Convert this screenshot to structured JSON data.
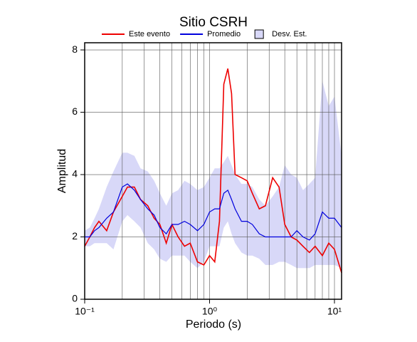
{
  "chart_data": {
    "type": "line",
    "title": "Sitio CSRH",
    "xlabel": "Periodo (s)",
    "ylabel": "Amplitud",
    "x": [
      0.1,
      0.11,
      0.12,
      0.13,
      0.15,
      0.17,
      0.2,
      0.22,
      0.25,
      0.28,
      0.32,
      0.36,
      0.4,
      0.45,
      0.5,
      0.56,
      0.63,
      0.7,
      0.8,
      0.9,
      1.0,
      1.1,
      1.2,
      1.3,
      1.4,
      1.5,
      1.6,
      1.8,
      2.0,
      2.2,
      2.5,
      2.8,
      3.2,
      3.6,
      4,
      4.5,
      5,
      5.6,
      6.3,
      7,
      8,
      9,
      10,
      11.4
    ],
    "series": [
      {
        "name": "Este evento",
        "color": "#ee0000",
        "values": [
          1.7,
          2.0,
          2.3,
          2.5,
          2.2,
          2.8,
          3.3,
          3.6,
          3.6,
          3.2,
          3.0,
          2.6,
          2.4,
          1.8,
          2.4,
          2.0,
          1.7,
          1.8,
          1.2,
          1.1,
          1.4,
          1.2,
          2.5,
          6.9,
          7.4,
          6.6,
          4.0,
          3.9,
          3.8,
          3.4,
          2.9,
          3.0,
          3.9,
          3.6,
          2.4,
          2.0,
          1.9,
          1.7,
          1.5,
          1.7,
          1.4,
          1.8,
          1.6,
          0.85
        ]
      },
      {
        "name": "Promedio",
        "color": "#0000dd",
        "values": [
          2.0,
          2.0,
          2.2,
          2.3,
          2.6,
          2.8,
          3.6,
          3.7,
          3.5,
          3.2,
          2.9,
          2.7,
          2.3,
          2.1,
          2.4,
          2.4,
          2.5,
          2.4,
          2.2,
          2.4,
          2.8,
          2.9,
          2.9,
          3.4,
          3.5,
          3.2,
          2.9,
          2.5,
          2.5,
          2.4,
          2.1,
          2.0,
          2.0,
          2.0,
          2.0,
          2.0,
          2.2,
          2.0,
          1.9,
          2.1,
          2.8,
          2.6,
          2.6,
          2.3
        ]
      }
    ],
    "band": {
      "name": "Desv. Est.",
      "color": "#d8d8f8",
      "upper": [
        2.2,
        2.3,
        2.6,
        2.9,
        3.6,
        4.1,
        4.7,
        4.7,
        4.6,
        4.2,
        4.1,
        3.8,
        3.4,
        3.0,
        3.4,
        3.5,
        3.8,
        3.7,
        3.5,
        3.6,
        3.9,
        4.2,
        4.2,
        4.4,
        4.6,
        4.3,
        4.0,
        3.7,
        3.7,
        3.6,
        3.2,
        3.0,
        3.3,
        3.6,
        4.3,
        4.0,
        3.9,
        3.5,
        3.7,
        3.9,
        7.0,
        6.2,
        6.5,
        4.6
      ],
      "lower": [
        1.7,
        1.7,
        1.8,
        1.8,
        1.8,
        1.6,
        2.5,
        2.7,
        2.5,
        2.3,
        1.8,
        1.6,
        1.3,
        1.2,
        1.4,
        1.4,
        1.4,
        1.2,
        1.0,
        1.2,
        1.7,
        1.7,
        1.7,
        2.3,
        2.5,
        2.1,
        1.8,
        1.5,
        1.4,
        1.4,
        1.3,
        1.1,
        1.1,
        1.2,
        1.2,
        1.1,
        1.0,
        1.0,
        1.0,
        1.1,
        1.1,
        1.1,
        1.1,
        1.0
      ]
    },
    "xscale": "log",
    "xlim": [
      0.1,
      11.4
    ],
    "xticks": [
      {
        "value": 0.1,
        "label": "10⁻¹"
      },
      {
        "value": 1,
        "label": "10⁰"
      },
      {
        "value": 10,
        "label": "10¹"
      }
    ],
    "ylim": [
      0,
      8.23
    ],
    "yticks": [
      0,
      2,
      4,
      6,
      8
    ],
    "grid": true
  }
}
